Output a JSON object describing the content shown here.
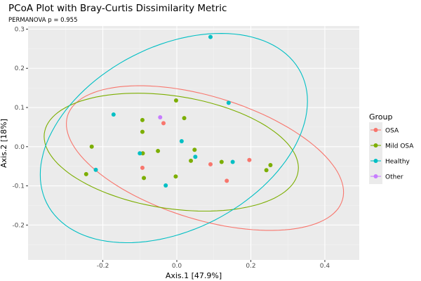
{
  "chart_data": {
    "type": "scatter",
    "title": "PCoA Plot with Bray-Curtis Dissimilarity Metric",
    "subtitle": "PERMANOVA p = 0.955",
    "xlabel": "Axis.1  [47.9%]",
    "ylabel": "Axis.2  [18%]",
    "xlim": [
      -0.402,
      0.493
    ],
    "ylim": [
      -0.289,
      0.308
    ],
    "xticks": [
      -0.2,
      0.0,
      0.2,
      0.4
    ],
    "xtick_labels": [
      "-0.2",
      "0.0",
      "0.2",
      "0.4"
    ],
    "yticks": [
      -0.2,
      -0.1,
      0.0,
      0.1,
      0.2,
      0.3
    ],
    "ytick_labels": [
      "-0.2",
      "-0.1",
      "0.0",
      "0.1",
      "0.2",
      "0.3"
    ],
    "grid": true,
    "legend": {
      "title": "Group",
      "placement": "right"
    },
    "series": [
      {
        "name": "OSA",
        "color": "#F8766D",
        "points": [
          [
            -0.036,
            0.06
          ],
          [
            -0.093,
            -0.054
          ],
          [
            0.091,
            -0.045
          ],
          [
            0.196,
            -0.034
          ],
          [
            0.135,
            -0.087
          ]
        ],
        "ellipse": {
          "center": [
            0.076,
            -0.029
          ],
          "u": [
            0.373,
            -0.072
          ],
          "v": [
            -0.034,
            0.17
          ]
        }
      },
      {
        "name": "Mild OSA",
        "color": "#7CAE00",
        "points": [
          [
            -0.093,
            0.068
          ],
          [
            -0.002,
            0.118
          ],
          [
            0.02,
            0.073
          ],
          [
            -0.093,
            0.038
          ],
          [
            -0.23,
            0.0
          ],
          [
            -0.092,
            -0.017
          ],
          [
            -0.051,
            -0.011
          ],
          [
            0.048,
            -0.008
          ],
          [
            0.038,
            -0.036
          ],
          [
            -0.245,
            -0.07
          ],
          [
            -0.089,
            -0.08
          ],
          [
            -0.003,
            -0.076
          ],
          [
            0.121,
            -0.039
          ],
          [
            0.253,
            -0.047
          ],
          [
            0.242,
            -0.06
          ]
        ],
        "ellipse": {
          "center": [
            -0.015,
            -0.014
          ],
          "u": [
            0.343,
            -0.032
          ],
          "v": [
            -0.019,
            0.147
          ]
        }
      },
      {
        "name": "Healthy",
        "color": "#00BFC4",
        "points": [
          [
            0.091,
            0.28
          ],
          [
            -0.171,
            0.082
          ],
          [
            0.013,
            0.014
          ],
          [
            -0.1,
            -0.017
          ],
          [
            0.05,
            -0.026
          ],
          [
            -0.219,
            -0.059
          ],
          [
            -0.03,
            -0.099
          ],
          [
            0.14,
            0.112
          ],
          [
            0.151,
            -0.039
          ]
        ],
        "ellipse": {
          "center": [
            -0.008,
            0.022
          ],
          "u": [
            0.313,
            0.206
          ],
          "v": [
            -0.18,
            0.17
          ]
        }
      },
      {
        "name": "Other",
        "color": "#C77CFF",
        "points": [
          [
            -0.045,
            0.075
          ]
        ],
        "ellipse": null
      }
    ]
  }
}
